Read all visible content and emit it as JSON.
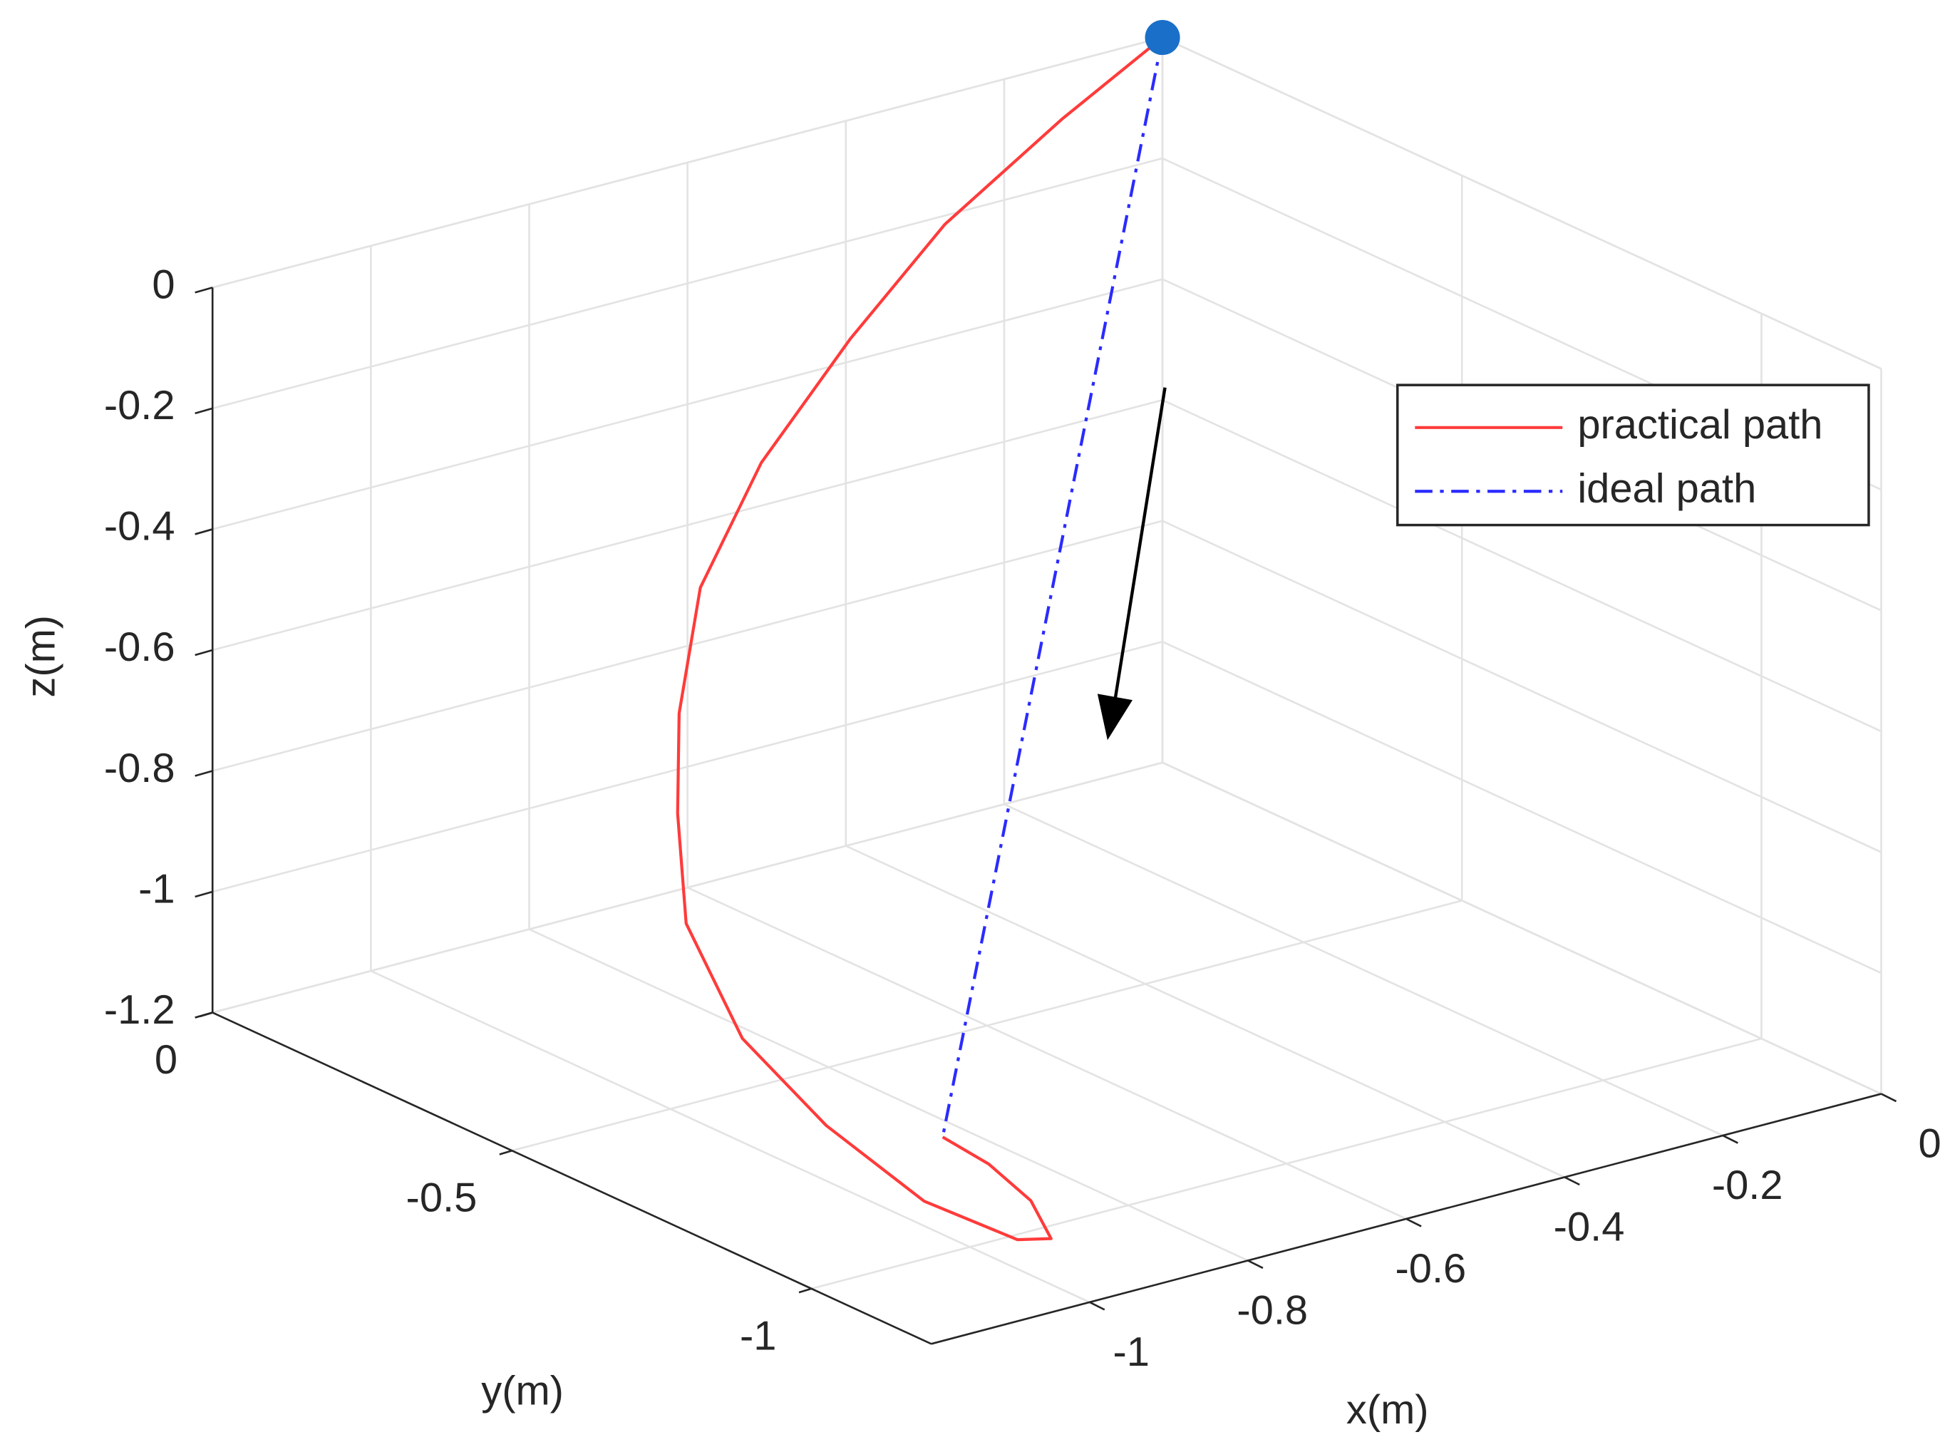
{
  "chart_data": {
    "type": "line3d",
    "xlabel": "x(m)",
    "ylabel": "y(m)",
    "zlabel": "z(m)",
    "xlim": [
      -1.2,
      0
    ],
    "ylim": [
      -1.2,
      0
    ],
    "zlim": [
      -1.2,
      0
    ],
    "xticks": [
      -1,
      -0.8,
      -0.6,
      -0.4,
      -0.2,
      0
    ],
    "yticks": [
      -1,
      -0.5,
      0
    ],
    "zticks": [
      -1.2,
      -1,
      -0.8,
      -0.6,
      -0.4,
      -0.2,
      0
    ],
    "grid": true,
    "legend": "upper right",
    "start_marker_color": "#1a6fc9",
    "series": [
      {
        "name": "practical path",
        "color": "#ff3b3b",
        "style": "solid",
        "x": [
          0,
          -0.15,
          -0.29,
          -0.44,
          -0.59,
          -0.72,
          -0.83,
          -0.9,
          -0.98,
          -1.03,
          -1.03,
          -1.02,
          -0.97,
          -0.92,
          -0.87,
          -0.84,
          -0.83
        ],
        "y": [
          0,
          -0.03,
          -0.02,
          -0.06,
          -0.11,
          -0.18,
          -0.29,
          -0.38,
          -0.5,
          -0.66,
          -0.8,
          -0.95,
          -1.04,
          -1.03,
          -0.93,
          -0.82,
          -0.73
        ],
        "z": [
          0,
          -0.07,
          -0.2,
          -0.32,
          -0.45,
          -0.58,
          -0.7,
          -0.8,
          -0.9,
          -1.0,
          -1.08,
          -1.14,
          -1.18,
          -1.2,
          -1.2,
          -1.2,
          -1.2
        ]
      },
      {
        "name": "ideal path",
        "color": "#2b2bff",
        "style": "dash-dot",
        "x": [
          0,
          -0.83
        ],
        "y": [
          0,
          -0.73
        ],
        "z": [
          0,
          -1.2
        ]
      }
    ]
  }
}
